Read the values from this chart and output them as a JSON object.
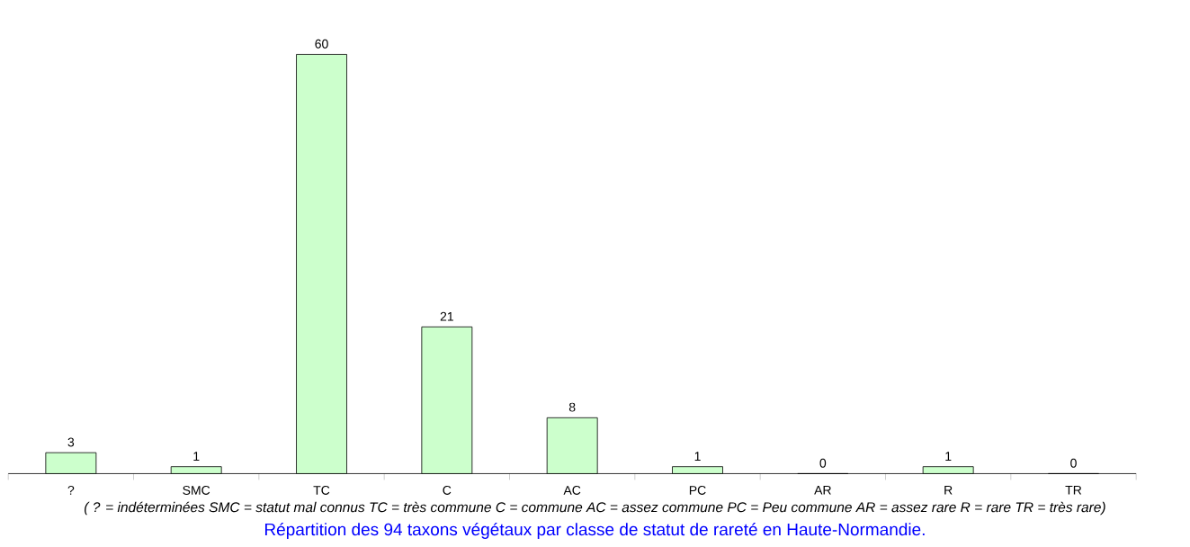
{
  "chart_data": {
    "type": "bar",
    "categories": [
      "?",
      "SMC",
      "TC",
      "C",
      "AC",
      "PC",
      "AR",
      "R",
      "TR"
    ],
    "values": [
      3,
      1,
      60,
      21,
      8,
      1,
      0,
      1,
      0
    ],
    "color": "#ccffcc",
    "data_labels": true,
    "annotations": [
      "( ? = indéterminées SMC = statut mal connus TC = très commune C = commune AC = assez commune PC = Peu commune AR = assez rare R = rare TR = très rare)",
      "Répartition des 94 taxons végétaux par classe de statut de rareté en Haute-Normandie."
    ]
  }
}
